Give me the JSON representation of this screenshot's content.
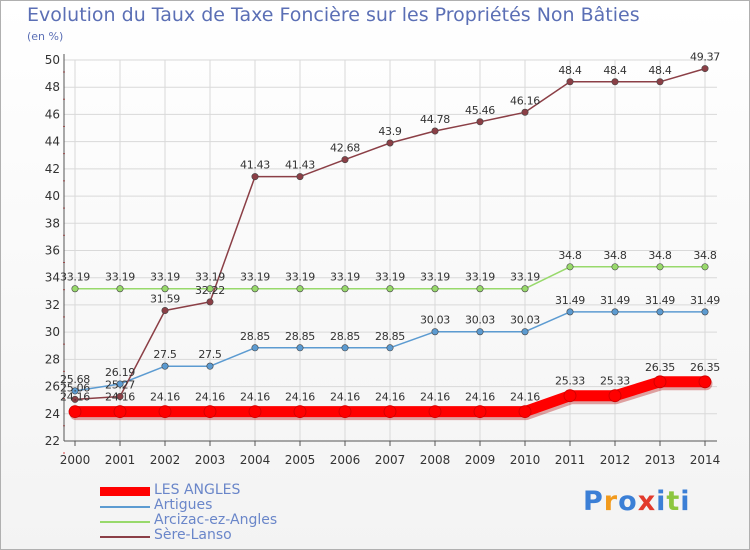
{
  "header": {
    "title": "Evolution du Taux de Taxe Foncière sur les Propriétés Non Bâties",
    "unit": "(en %)"
  },
  "chart_data": {
    "type": "line",
    "title": "Evolution du Taux de Taxe Foncière sur les Propriétés Non Bâties",
    "ylabel": "(en %)",
    "xlabel": "",
    "ylim": [
      22,
      50
    ],
    "yticks": [
      22,
      24,
      26,
      28,
      30,
      32,
      34,
      36,
      38,
      40,
      42,
      44,
      46,
      48,
      50
    ],
    "x": [
      "2000",
      "2001",
      "2002",
      "2003",
      "2004",
      "2005",
      "2006",
      "2007",
      "2008",
      "2009",
      "2010",
      "2011",
      "2012",
      "2013",
      "2014"
    ],
    "series": [
      {
        "name": "LES ANGLES",
        "color": "#ff0000",
        "values": [
          24.16,
          24.16,
          24.16,
          24.16,
          24.16,
          24.16,
          24.16,
          24.16,
          24.16,
          24.16,
          24.16,
          25.33,
          25.33,
          26.35,
          26.35
        ],
        "labels": [
          "24.16",
          "24.16",
          "24.16",
          "24.16",
          "24.16",
          "24.16",
          "24.16",
          "24.16",
          "24.16",
          "24.16",
          "24.16",
          "25.33",
          "25.33",
          "26.35",
          "26.35"
        ]
      },
      {
        "name": "Artigues",
        "color": "#5c9bd1",
        "values": [
          25.68,
          26.19,
          27.5,
          27.5,
          28.85,
          28.85,
          28.85,
          28.85,
          30.03,
          30.03,
          30.03,
          31.49,
          31.49,
          31.49,
          31.49
        ],
        "labels": [
          "25.68",
          "26.19",
          "27.5",
          "27.5",
          "28.85",
          "28.85",
          "28.85",
          "28.85",
          "30.03",
          "30.03",
          "30.03",
          "31.49",
          "31.49",
          "31.49",
          "31.49"
        ]
      },
      {
        "name": "Arcizac-ez-Angles",
        "color": "#98d96b",
        "values": [
          33.19,
          33.19,
          33.19,
          33.19,
          33.19,
          33.19,
          33.19,
          33.19,
          33.19,
          33.19,
          33.19,
          34.8,
          34.8,
          34.8,
          34.8
        ],
        "labels": [
          "33.19",
          "33.19",
          "33.19",
          "33.19",
          "33.19",
          "33.19",
          "33.19",
          "33.19",
          "33.19",
          "33.19",
          "33.19",
          "34.8",
          "34.8",
          "34.8",
          "34.8"
        ]
      },
      {
        "name": "Sère-Lanso",
        "color": "#8b3f46",
        "values": [
          25.06,
          25.27,
          31.59,
          32.22,
          41.43,
          41.43,
          42.68,
          43.9,
          44.78,
          45.46,
          46.16,
          48.4,
          48.4,
          48.4,
          49.37
        ],
        "labels": [
          "25.06",
          "25.27",
          "31.59",
          "32.22",
          "41.43",
          "41.43",
          "42.68",
          "43.9",
          "44.78",
          "45.46",
          "46.16",
          "48.4",
          "48.4",
          "48.4",
          "49.37"
        ]
      }
    ]
  },
  "legend": [
    {
      "label": "LES ANGLES",
      "color": "#ff0000"
    },
    {
      "label": "Artigues",
      "color": "#5c9bd1"
    },
    {
      "label": "Arcizac-ez-Angles",
      "color": "#98d96b"
    },
    {
      "label": "Sère-Lanso",
      "color": "#8b3f46"
    }
  ],
  "logo": {
    "text": "Proxiti",
    "letters": [
      "P",
      "r",
      "o",
      "x",
      "i",
      "t",
      "i"
    ],
    "letter_colors": [
      "#3b7fd6",
      "#f29a1c",
      "#3b7fd6",
      "#e23a2c",
      "#3b7fd6",
      "#8cc63f",
      "#3b7fd6"
    ]
  }
}
